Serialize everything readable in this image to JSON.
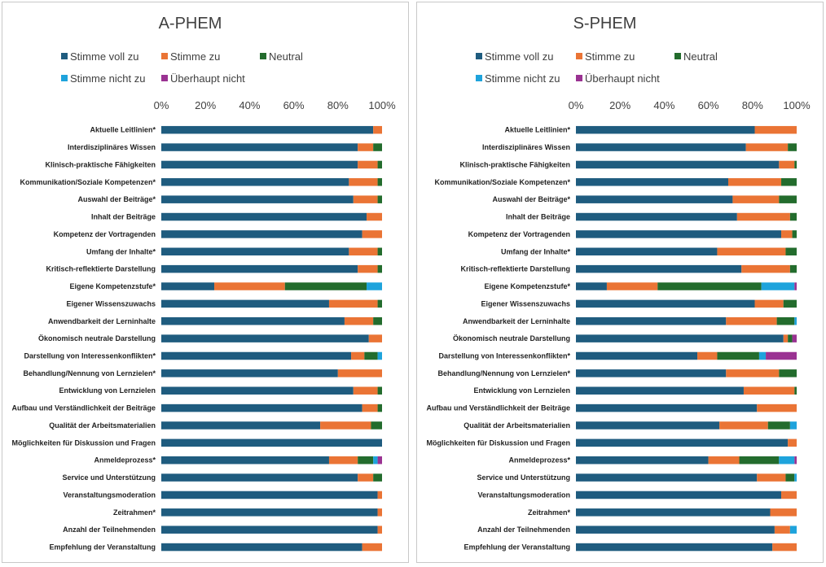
{
  "colors": {
    "Stimme voll zu": "#1f5c7f",
    "Stimme zu": "#ea7435",
    "Neutral": "#236c2d",
    "Stimme nicht zu": "#1ea3dc",
    "Überhaupt nicht": "#9a3292"
  },
  "chart_data": [
    {
      "type": "bar",
      "orientation": "horizontal",
      "stacked": "percent",
      "title": "A-PHEM",
      "legend_position": "top",
      "xlim": [
        0,
        100
      ],
      "x_ticks": [
        "0%",
        "20%",
        "40%",
        "60%",
        "80%",
        "100%"
      ],
      "grid": false,
      "categories": [
        "Aktuelle Leitlinien*",
        "Interdisziplinäres Wissen",
        "Klinisch-praktische Fähigkeiten",
        "Kommunikation/Soziale Kompetenzen*",
        "Auswahl der Beiträge*",
        "Inhalt der Beiträge",
        "Kompetenz der Vortragenden",
        "Umfang der Inhalte*",
        "Kritisch-reflektierte Darstellung",
        "Eigene Kompetenzstufe*",
        "Eigener Wissenszuwachs",
        "Anwendbarkeit der Lerninhalte",
        "Ökonomisch neutrale Darstellung",
        "Darstellung von Interessenkonflikten*",
        "Behandlung/Nennung von Lernzielen*",
        "Entwicklung von Lernzielen",
        "Aufbau und Verständlichkeit der Beiträge",
        "Qualität der Arbeitsmaterialien",
        "Möglichkeiten für Diskussion und Fragen",
        "Anmeldeprozess*",
        "Service und Unterstützung",
        "Veranstaltungsmoderation",
        "Zeitrahmen*",
        "Anzahl der Teilnehmenden",
        "Empfehlung der Veranstaltung"
      ],
      "series": [
        {
          "name": "Stimme voll zu",
          "values": [
            96,
            89,
            89,
            85,
            87,
            93,
            91,
            85,
            89,
            24,
            76,
            83,
            94,
            86,
            80,
            87,
            91,
            72,
            100,
            76,
            89,
            98,
            98,
            98,
            91
          ]
        },
        {
          "name": "Stimme zu",
          "values": [
            4,
            7,
            9,
            13,
            11,
            7,
            9,
            13,
            9,
            32,
            22,
            13,
            6,
            6,
            20,
            11,
            7,
            23,
            0,
            13,
            7,
            2,
            2,
            2,
            9
          ]
        },
        {
          "name": "Neutral",
          "values": [
            0,
            4,
            2,
            2,
            2,
            0,
            0,
            2,
            2,
            37,
            2,
            4,
            0,
            6,
            0,
            2,
            2,
            5,
            0,
            7,
            4,
            0,
            0,
            0,
            0
          ]
        },
        {
          "name": "Stimme nicht zu",
          "values": [
            0,
            0,
            0,
            0,
            0,
            0,
            0,
            0,
            0,
            7,
            0,
            0,
            0,
            2,
            0,
            0,
            0,
            0,
            0,
            2,
            0,
            0,
            0,
            0,
            0
          ]
        },
        {
          "name": "Überhaupt nicht",
          "values": [
            0,
            0,
            0,
            0,
            0,
            0,
            0,
            0,
            0,
            0,
            0,
            0,
            0,
            0,
            0,
            0,
            0,
            0,
            0,
            2,
            0,
            0,
            0,
            0,
            0
          ]
        }
      ]
    },
    {
      "type": "bar",
      "orientation": "horizontal",
      "stacked": "percent",
      "title": "S-PHEM",
      "legend_position": "top",
      "xlim": [
        0,
        100
      ],
      "x_ticks": [
        "0%",
        "20%",
        "40%",
        "60%",
        "80%",
        "100%"
      ],
      "grid": false,
      "categories": [
        "Aktuelle Leitlinien*",
        "Interdisziplinäres Wissen",
        "Klinisch-praktische Fähigkeiten",
        "Kommunikation/Soziale Kompetenzen*",
        "Auswahl der Beiträge*",
        "Inhalt der Beiträge",
        "Kompetenz der Vortragenden",
        "Umfang der Inhalte*",
        "Kritisch-reflektierte Darstellung",
        "Eigene Kompetenzstufe*",
        "Eigener Wissenszuwachs",
        "Anwendbarkeit der Lerninhalte",
        "Ökonomisch neutrale Darstellung",
        "Darstellung von Interessenkonflikten*",
        "Behandlung/Nennung von Lernzielen*",
        "Entwicklung von Lernzielen",
        "Aufbau und Verständlichkeit der Beiträge",
        "Qualität der Arbeitsmaterialien",
        "Möglichkeiten für Diskussion und Fragen",
        "Anmeldeprozess*",
        "Service und Unterstützung",
        "Veranstaltungsmoderation",
        "Zeitrahmen*",
        "Anzahl der Teilnehmenden",
        "Empfehlung der Veranstaltung"
      ],
      "series": [
        {
          "name": "Stimme voll zu",
          "values": [
            81,
            77,
            92,
            69,
            71,
            73,
            93,
            64,
            75,
            14,
            81,
            68,
            94,
            55,
            68,
            76,
            82,
            65,
            96,
            60,
            82,
            93,
            88,
            90,
            89
          ]
        },
        {
          "name": "Stimme zu",
          "values": [
            19,
            19,
            7,
            24,
            21,
            24,
            5,
            31,
            22,
            23,
            13,
            23,
            2,
            9,
            24,
            23,
            18,
            22,
            4,
            14,
            13,
            7,
            12,
            7,
            11
          ]
        },
        {
          "name": "Neutral",
          "values": [
            0,
            4,
            1,
            7,
            8,
            3,
            2,
            5,
            3,
            47,
            6,
            8,
            2,
            19,
            8,
            1,
            0,
            10,
            0,
            18,
            4,
            0,
            0,
            0,
            0
          ]
        },
        {
          "name": "Stimme nicht zu",
          "values": [
            0,
            0,
            0,
            0,
            0,
            0,
            0,
            0,
            0,
            15,
            0,
            1,
            0,
            3,
            0,
            0,
            0,
            3,
            0,
            7,
            1,
            0,
            0,
            3,
            0
          ]
        },
        {
          "name": "Überhaupt nicht",
          "values": [
            0,
            0,
            0,
            0,
            0,
            0,
            0,
            0,
            0,
            1,
            0,
            0,
            2,
            14,
            0,
            0,
            0,
            0,
            0,
            1,
            0,
            0,
            0,
            0,
            0
          ]
        }
      ]
    }
  ]
}
